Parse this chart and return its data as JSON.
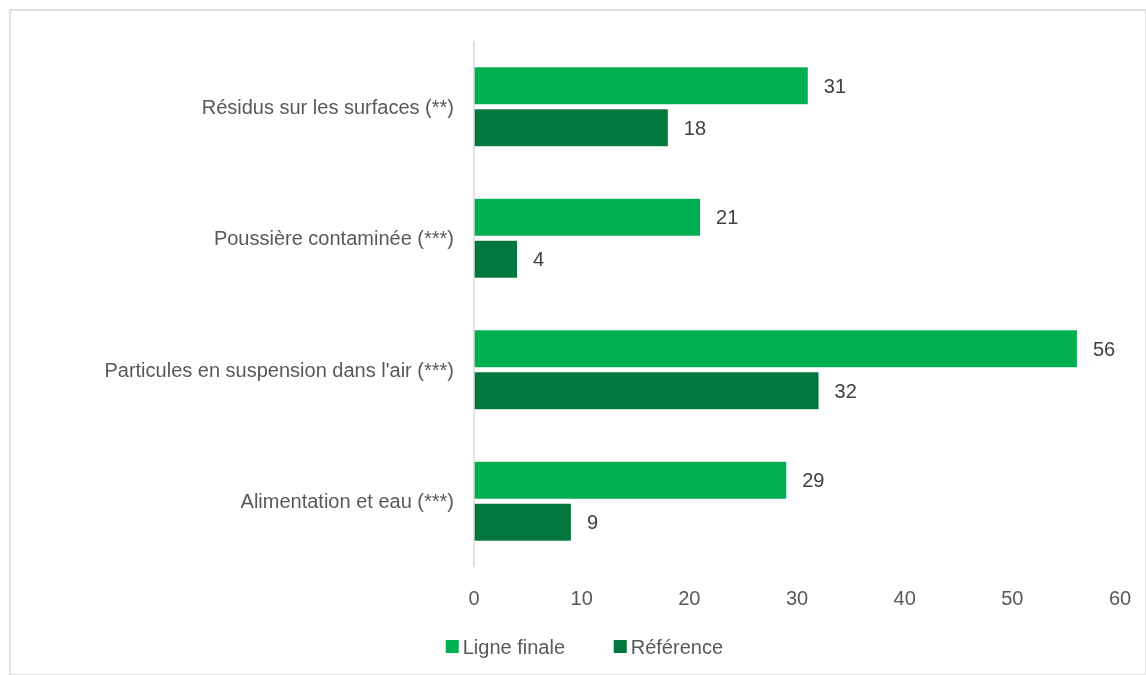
{
  "chart_data": {
    "type": "bar",
    "orientation": "horizontal",
    "categories": [
      "Résidus sur les surfaces (**)",
      "Poussière contaminée (***)",
      "Particules en suspension dans l'air (***)",
      "Alimentation et eau (***)"
    ],
    "series": [
      {
        "name": "Ligne finale",
        "color": "#00b050",
        "values": [
          31,
          21,
          56,
          29
        ]
      },
      {
        "name": "Référence",
        "color": "#00773c",
        "values": [
          18,
          4,
          32,
          9
        ]
      }
    ],
    "xlim": [
      0,
      60
    ],
    "xticks": [
      0,
      10,
      20,
      30,
      40,
      50,
      60
    ],
    "data_labels": true,
    "legend": "bottom",
    "grid": false
  }
}
